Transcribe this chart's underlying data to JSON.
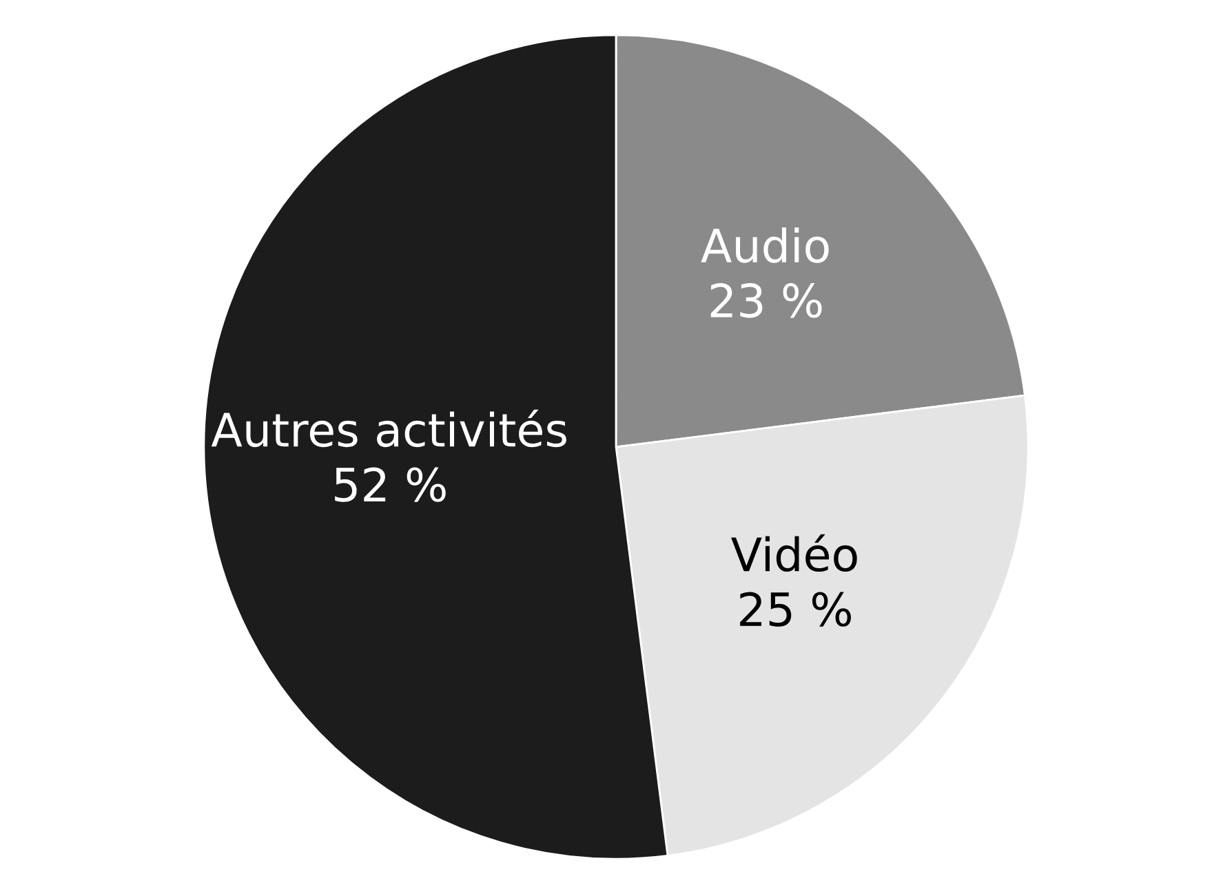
{
  "chart_data": {
    "type": "pie",
    "categories": [
      "Audio",
      "Vidéo",
      "Autres activités"
    ],
    "values": [
      23,
      25,
      52
    ],
    "colors": [
      "#8a8a8a",
      "#e4e4e4",
      "#1c1c1c"
    ],
    "value_labels": [
      "23 %",
      "25 %",
      "52 %"
    ]
  }
}
